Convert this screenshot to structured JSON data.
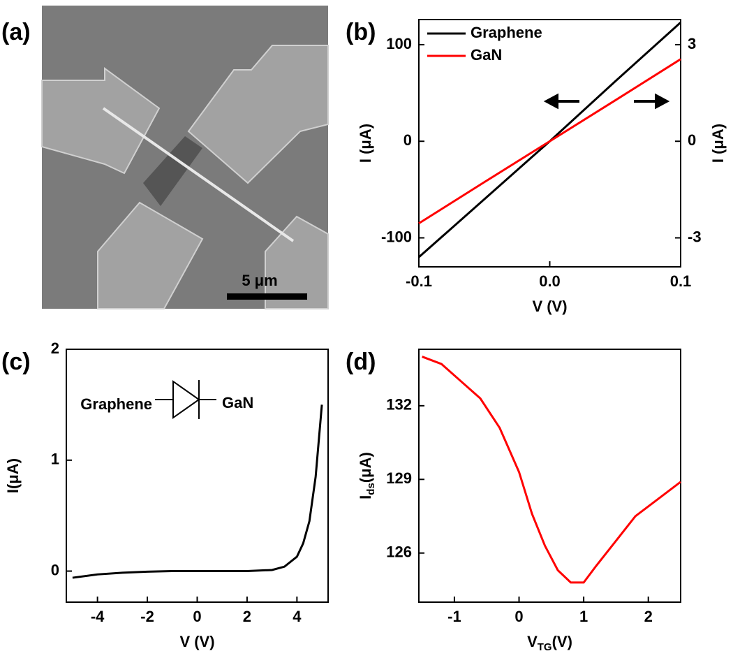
{
  "image_panel": {
    "label": "(a)",
    "scale_bar": "5 μm"
  },
  "chart_data": [
    {
      "type": "line",
      "label": "(b)",
      "xlabel": "V (V)",
      "ylabel": "I (μA)",
      "y2label": "I (μA)",
      "x": [
        -0.1,
        -0.05,
        0,
        0.05,
        0.1
      ],
      "series": [
        {
          "name": "Graphene",
          "color": "#000000",
          "values": [
            -120,
            -60,
            0,
            62,
            123
          ]
        },
        {
          "name": "GaN",
          "color": "#ff0000",
          "axis": "y2",
          "values": [
            -2.55,
            -1.27,
            0,
            1.27,
            2.55
          ]
        }
      ],
      "xlim": [
        -0.1,
        0.1
      ],
      "xticks": [
        -0.1,
        {
          "value": 0,
          "label": "0.0"
        },
        0.1
      ],
      "ylim": [
        -130,
        126
      ],
      "yticks": [
        -100,
        0,
        100
      ],
      "y2lim": [
        -3.9,
        3.78
      ],
      "y2ticks": [
        -3,
        0,
        3
      ],
      "legend": "upper left"
    },
    {
      "type": "line",
      "label": "(c)",
      "xlabel": "V (V)",
      "ylabel": "I(μA)",
      "diagram": {
        "left": "Graphene",
        "right": "GaN"
      },
      "x": [
        -5,
        -4,
        -3,
        -2,
        -1,
        0,
        1,
        2,
        3,
        3.5,
        4,
        4.25,
        4.5,
        4.75,
        5
      ],
      "series": [
        {
          "name": "I",
          "color": "#000000",
          "values": [
            -0.06,
            -0.03,
            -0.015,
            -0.005,
            0,
            0,
            0,
            0,
            0.01,
            0.04,
            0.13,
            0.25,
            0.45,
            0.85,
            1.5
          ]
        }
      ],
      "xlim": [
        -5.25,
        5.25
      ],
      "xticks": [
        -4,
        -2,
        0,
        2,
        4
      ],
      "ylim": [
        -0.28,
        2
      ],
      "yticks": [
        0,
        1,
        2
      ]
    },
    {
      "type": "line",
      "label": "(d)",
      "xlabel": {
        "main": "V",
        "sub": "TG",
        "unit": "(V)"
      },
      "ylabel": {
        "main": "I",
        "sub": "ds",
        "unit": "(μA)"
      },
      "x": [
        -1.5,
        -1.2,
        -0.9,
        -0.6,
        -0.3,
        0,
        0.2,
        0.4,
        0.6,
        0.8,
        1.0,
        1.2,
        1.5,
        1.8,
        2.1,
        2.5
      ],
      "series": [
        {
          "name": "Ids",
          "color": "#ff0000",
          "values": [
            134.0,
            133.7,
            133.0,
            132.3,
            131.1,
            129.3,
            127.6,
            126.3,
            125.3,
            124.8,
            124.8,
            125.5,
            126.5,
            127.5,
            128.1,
            128.9
          ]
        }
      ],
      "xlim": [
        -1.55,
        2.5
      ],
      "xticks": [
        -1,
        0,
        1,
        2
      ],
      "ylim": [
        124,
        134.3
      ],
      "yticks": [
        126,
        129,
        132
      ]
    }
  ]
}
